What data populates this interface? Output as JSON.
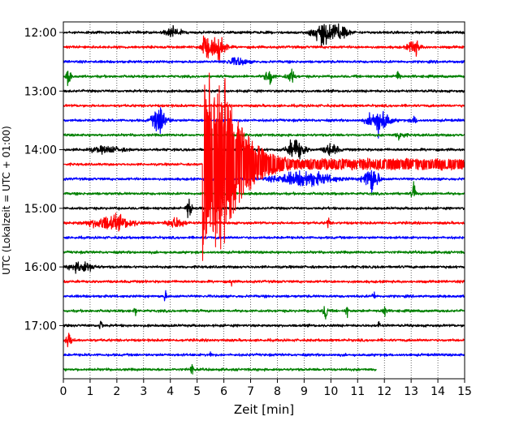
{
  "chart_data": {
    "type": "line",
    "title": "",
    "xlabel": "Zeit  [min]",
    "ylabel": "UTC (Lokalzeit = UTC + 01:00)",
    "xlim": [
      0,
      15
    ],
    "xticks": [
      0,
      1,
      2,
      3,
      4,
      5,
      6,
      7,
      8,
      9,
      10,
      11,
      12,
      13,
      14,
      15
    ],
    "ytick_labels": [
      "12:00",
      "13:00",
      "14:00",
      "15:00",
      "16:00",
      "17:00"
    ],
    "ytick_trace_index": [
      0,
      4,
      8,
      12,
      16,
      20
    ],
    "grid": "vertical dotted",
    "trace_interval_minutes": 15,
    "trace_colors": [
      "#000000",
      "#ff0000",
      "#0000ff",
      "#008000"
    ],
    "traces": [
      {
        "start": "12:00",
        "color": "#000000",
        "end_min": 15,
        "events": [
          {
            "t": 4.1,
            "amp": 0.25,
            "dur": 0.6
          },
          {
            "t": 9.7,
            "amp": 0.6,
            "dur": 0.7
          },
          {
            "t": 10.3,
            "amp": 0.5,
            "dur": 0.6
          }
        ]
      },
      {
        "start": "12:15",
        "color": "#ff0000",
        "end_min": 15,
        "events": [
          {
            "t": 5.3,
            "amp": 0.7,
            "dur": 0.3
          },
          {
            "t": 5.8,
            "amp": 0.7,
            "dur": 0.5
          },
          {
            "t": 13.1,
            "amp": 0.45,
            "dur": 0.4
          }
        ]
      },
      {
        "start": "12:30",
        "color": "#0000ff",
        "end_min": 15,
        "events": [
          {
            "t": 6.5,
            "amp": 0.2,
            "dur": 0.7
          }
        ]
      },
      {
        "start": "12:45",
        "color": "#008000",
        "end_min": 15,
        "events": [
          {
            "t": 0.2,
            "amp": 0.55,
            "dur": 0.15
          },
          {
            "t": 7.7,
            "amp": 0.45,
            "dur": 0.3
          },
          {
            "t": 8.5,
            "amp": 0.35,
            "dur": 0.3
          },
          {
            "t": 12.5,
            "amp": 0.35,
            "dur": 0.15
          }
        ]
      },
      {
        "start": "13:00",
        "color": "#000000",
        "end_min": 15,
        "events": []
      },
      {
        "start": "13:15",
        "color": "#ff0000",
        "end_min": 15,
        "events": []
      },
      {
        "start": "13:30",
        "color": "#0000ff",
        "end_min": 15,
        "events": [
          {
            "t": 3.6,
            "amp": 0.8,
            "dur": 0.5
          },
          {
            "t": 11.8,
            "amp": 0.75,
            "dur": 0.7
          },
          {
            "t": 13.1,
            "amp": 0.2,
            "dur": 0.2
          }
        ]
      },
      {
        "start": "13:45",
        "color": "#008000",
        "end_min": 15,
        "events": [
          {
            "t": 12.6,
            "amp": 0.25,
            "dur": 0.3
          }
        ]
      },
      {
        "start": "14:00",
        "color": "#000000",
        "end_min": 15,
        "events": [
          {
            "t": 1.6,
            "amp": 0.15,
            "dur": 1.2
          },
          {
            "t": 8.7,
            "amp": 0.6,
            "dur": 0.6
          },
          {
            "t": 10.0,
            "amp": 0.3,
            "dur": 0.5
          }
        ]
      },
      {
        "start": "14:15",
        "color": "#ff0000",
        "end_min": 15,
        "events": []
      },
      {
        "start": "14:30",
        "color": "#0000ff",
        "end_min": 15,
        "events": [
          {
            "t": 9.0,
            "amp": 0.4,
            "dur": 2.0
          },
          {
            "t": 11.5,
            "amp": 0.8,
            "dur": 0.5
          }
        ]
      },
      {
        "start": "14:45",
        "color": "#008000",
        "end_min": 15,
        "events": [
          {
            "t": 13.1,
            "amp": 0.5,
            "dur": 0.15
          }
        ]
      },
      {
        "start": "15:00",
        "color": "#000000",
        "end_min": 15,
        "events": [
          {
            "t": 4.7,
            "amp": 0.6,
            "dur": 0.2
          }
        ]
      },
      {
        "start": "15:15",
        "color": "#ff0000",
        "end_min": 15,
        "events": [
          {
            "t": 1.8,
            "amp": 0.4,
            "dur": 1.5
          },
          {
            "t": 4.2,
            "amp": 0.3,
            "dur": 0.6
          },
          {
            "t": 9.9,
            "amp": 0.35,
            "dur": 0.1
          }
        ]
      },
      {
        "start": "15:30",
        "color": "#0000ff",
        "end_min": 15,
        "events": []
      },
      {
        "start": "15:45",
        "color": "#008000",
        "end_min": 15,
        "events": []
      },
      {
        "start": "16:00",
        "color": "#000000",
        "end_min": 15,
        "events": [
          {
            "t": 0.7,
            "amp": 0.3,
            "dur": 0.8
          }
        ]
      },
      {
        "start": "16:15",
        "color": "#ff0000",
        "end_min": 15,
        "events": [
          {
            "t": 6.3,
            "amp": 0.25,
            "dur": 0.1
          }
        ]
      },
      {
        "start": "16:30",
        "color": "#0000ff",
        "end_min": 15,
        "events": [
          {
            "t": 3.8,
            "amp": 0.3,
            "dur": 0.1
          },
          {
            "t": 11.6,
            "amp": 0.3,
            "dur": 0.1
          }
        ]
      },
      {
        "start": "16:45",
        "color": "#008000",
        "end_min": 15,
        "events": [
          {
            "t": 2.7,
            "amp": 0.3,
            "dur": 0.1
          },
          {
            "t": 9.8,
            "amp": 0.6,
            "dur": 0.15
          },
          {
            "t": 10.6,
            "amp": 0.3,
            "dur": 0.1
          },
          {
            "t": 12.0,
            "amp": 0.3,
            "dur": 0.15
          }
        ]
      },
      {
        "start": "17:00",
        "color": "#000000",
        "end_min": 15,
        "events": [
          {
            "t": 1.4,
            "amp": 0.4,
            "dur": 0.1
          },
          {
            "t": 11.8,
            "amp": 0.2,
            "dur": 0.1
          }
        ]
      },
      {
        "start": "17:15",
        "color": "#ff0000",
        "end_min": 15,
        "events": [
          {
            "t": 0.2,
            "amp": 0.35,
            "dur": 0.3
          }
        ]
      },
      {
        "start": "17:30",
        "color": "#0000ff",
        "end_min": 15,
        "events": [
          {
            "t": 5.5,
            "amp": 0.2,
            "dur": 0.1
          }
        ]
      },
      {
        "start": "17:45",
        "color": "#008000",
        "end_min": 11.7,
        "events": [
          {
            "t": 4.8,
            "amp": 0.4,
            "dur": 0.1
          }
        ]
      }
    ],
    "earthquake": {
      "trace_index": 9,
      "color": "#ff0000",
      "onset_min": 5.2,
      "peak_amp_traces": 8.0,
      "decay_end_min": 14.7,
      "residual_amp_traces": 0.35
    }
  }
}
